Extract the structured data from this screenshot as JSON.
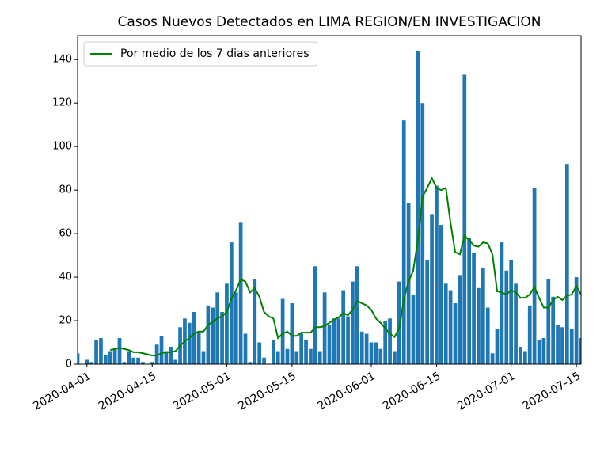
{
  "chart_data": {
    "type": "bar",
    "title": "Casos Nuevos Detectados en LIMA REGION/EN INVESTIGACION",
    "x": [
      "2020-03-30",
      "2020-03-31",
      "2020-04-01",
      "2020-04-02",
      "2020-04-03",
      "2020-04-04",
      "2020-04-05",
      "2020-04-06",
      "2020-04-07",
      "2020-04-08",
      "2020-04-09",
      "2020-04-10",
      "2020-04-11",
      "2020-04-12",
      "2020-04-13",
      "2020-04-14",
      "2020-04-15",
      "2020-04-16",
      "2020-04-17",
      "2020-04-18",
      "2020-04-19",
      "2020-04-20",
      "2020-04-21",
      "2020-04-22",
      "2020-04-23",
      "2020-04-24",
      "2020-04-25",
      "2020-04-26",
      "2020-04-27",
      "2020-04-28",
      "2020-04-29",
      "2020-04-30",
      "2020-05-01",
      "2020-05-02",
      "2020-05-03",
      "2020-05-04",
      "2020-05-05",
      "2020-05-06",
      "2020-05-07",
      "2020-05-08",
      "2020-05-09",
      "2020-05-10",
      "2020-05-11",
      "2020-05-12",
      "2020-05-13",
      "2020-05-14",
      "2020-05-15",
      "2020-05-16",
      "2020-05-17",
      "2020-05-18",
      "2020-05-19",
      "2020-05-20",
      "2020-05-21",
      "2020-05-22",
      "2020-05-23",
      "2020-05-24",
      "2020-05-25",
      "2020-05-26",
      "2020-05-27",
      "2020-05-28",
      "2020-05-29",
      "2020-05-30",
      "2020-05-31",
      "2020-06-01",
      "2020-06-02",
      "2020-06-03",
      "2020-06-04",
      "2020-06-05",
      "2020-06-06",
      "2020-06-07",
      "2020-06-08",
      "2020-06-09",
      "2020-06-10",
      "2020-06-11",
      "2020-06-12",
      "2020-06-13",
      "2020-06-14",
      "2020-06-15",
      "2020-06-16",
      "2020-06-17",
      "2020-06-18",
      "2020-06-19",
      "2020-06-20",
      "2020-06-21",
      "2020-06-22",
      "2020-06-23",
      "2020-06-24",
      "2020-06-25",
      "2020-06-26",
      "2020-06-27",
      "2020-06-28",
      "2020-06-29",
      "2020-06-30",
      "2020-07-01",
      "2020-07-02",
      "2020-07-03",
      "2020-07-04",
      "2020-07-05",
      "2020-07-06",
      "2020-07-07",
      "2020-07-08",
      "2020-07-09",
      "2020-07-10",
      "2020-07-11",
      "2020-07-12",
      "2020-07-13",
      "2020-07-14",
      "2020-07-15",
      "2020-07-16"
    ],
    "series": [
      {
        "type": "bar",
        "color": "#1f77b4",
        "values": [
          5,
          0,
          2,
          1,
          11,
          12,
          4,
          6,
          7,
          12,
          1,
          6,
          3,
          3,
          1,
          0,
          1,
          9,
          13,
          6,
          8,
          2,
          17,
          21,
          19,
          24,
          15,
          6,
          27,
          26,
          33,
          24,
          37,
          56,
          33,
          65,
          14,
          1,
          39,
          10,
          3,
          0,
          11,
          6,
          30,
          7,
          28,
          6,
          14,
          11,
          7,
          45,
          6,
          33,
          18,
          21,
          21,
          34,
          22,
          38,
          45,
          15,
          14,
          10,
          10,
          7,
          20,
          21,
          6,
          38,
          112,
          74,
          32,
          144,
          120,
          48,
          69,
          82,
          64,
          37,
          34,
          28,
          41,
          133,
          58,
          51,
          35,
          44,
          26,
          5,
          16,
          56,
          43,
          48,
          37,
          8,
          6,
          27,
          81,
          11,
          12,
          39,
          31,
          18,
          17,
          92,
          16,
          40,
          12
        ]
      },
      {
        "type": "line",
        "name": "Por medio de los 7 dias anteriores",
        "color": "#008000",
        "values": [
          null,
          null,
          null,
          null,
          null,
          null,
          null,
          6.5,
          7,
          7.5,
          7,
          6.5,
          5.5,
          5.5,
          5,
          4.5,
          4,
          4,
          5,
          5.5,
          5.5,
          6,
          8.5,
          10.5,
          12,
          14,
          15,
          15,
          18,
          19.5,
          21,
          22,
          24,
          30,
          34,
          39,
          38,
          33,
          35,
          31,
          24,
          22,
          21,
          12,
          14,
          15,
          13,
          13,
          14.5,
          14.5,
          14.5,
          17,
          17,
          17.5,
          19,
          20.5,
          21.5,
          23.5,
          22.5,
          25,
          29,
          28,
          27,
          25,
          21,
          19,
          16.5,
          14,
          12.5,
          16.5,
          30,
          38,
          43,
          57,
          77,
          81,
          85.5,
          81,
          80,
          81,
          65,
          51.5,
          50.5,
          59,
          57,
          54.5,
          54,
          56,
          55.5,
          50.5,
          33.5,
          33,
          32,
          34,
          33,
          30.5,
          30.5,
          32,
          35.5,
          30.5,
          26,
          26,
          29.5,
          31,
          29.5,
          31.5,
          32,
          36,
          32
        ]
      }
    ],
    "xlim": [
      "2020-03-30",
      "2020-07-16"
    ],
    "xticks": [
      "2020-04-01",
      "2020-04-15",
      "2020-05-01",
      "2020-05-15",
      "2020-06-01",
      "2020-06-15",
      "2020-07-01",
      "2020-07-15"
    ],
    "ylim": [
      0,
      151
    ],
    "yticks": [
      0,
      20,
      40,
      60,
      80,
      100,
      120,
      140
    ],
    "legend": "upper left"
  }
}
